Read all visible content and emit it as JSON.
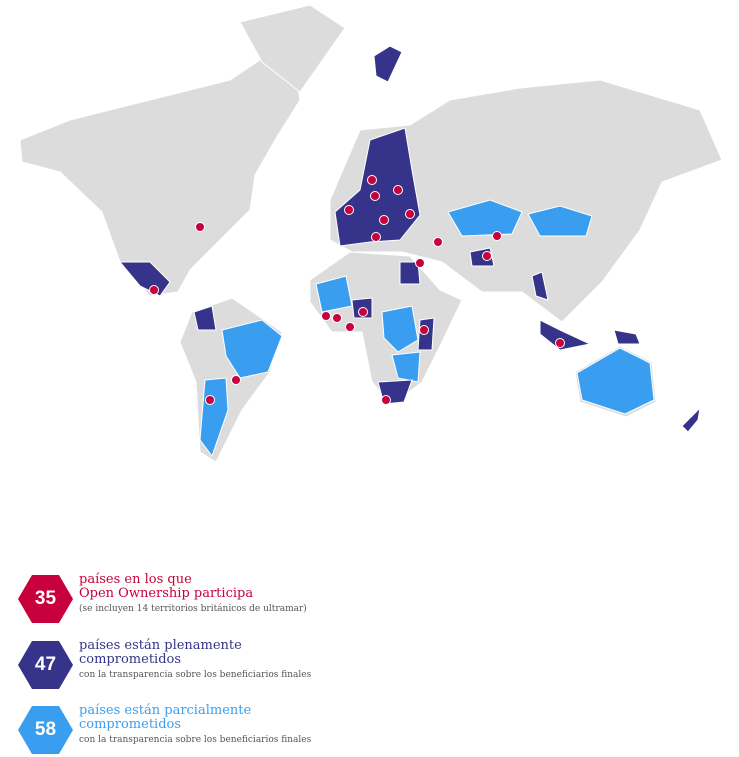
{
  "colors": {
    "participa": "#c8003c",
    "plenamente": "#36348a",
    "parcialmente": "#3a9ef0",
    "land": "#dcdcdc"
  },
  "legend": [
    {
      "number": "35",
      "title_line1": "países en los que",
      "title_line2": "Open Ownership participa",
      "note": "(se incluyen 14 territorios británicos de ultramar)"
    },
    {
      "number": "47",
      "title_line1": "países están plenamente",
      "title_line2": "comprometidos",
      "note": "con la transparencia sobre los beneficiarios finales"
    },
    {
      "number": "58",
      "title_line1": "países están parcialmente",
      "title_line2": "comprometidos",
      "note": "con la transparencia sobre los beneficiarios finales"
    }
  ]
}
